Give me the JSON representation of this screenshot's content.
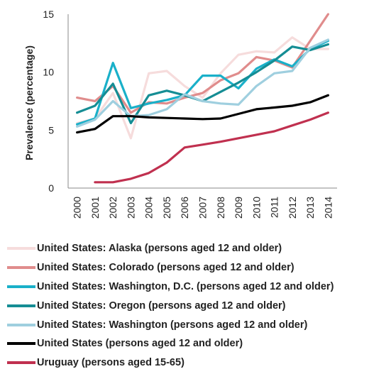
{
  "chart_data": {
    "type": "line",
    "title": "",
    "xlabel": "",
    "ylabel": "Prevalence (percentage)",
    "ylim": [
      0,
      15
    ],
    "yticks": [
      0,
      5,
      10,
      15
    ],
    "x": [
      "2000",
      "2001",
      "2002",
      "2003",
      "2004",
      "2005",
      "2006",
      "2007",
      "2008",
      "2009",
      "2010",
      "2011",
      "2012",
      "2013",
      "2014"
    ],
    "grid": false,
    "legend_position": "bottom",
    "series": [
      {
        "name": "United States: Alaska (persons aged 12 and older)",
        "color": "#f6dcdc",
        "values": [
          5.6,
          6.0,
          8.2,
          4.3,
          9.9,
          10.1,
          8.8,
          7.8,
          9.9,
          11.5,
          11.8,
          11.7,
          13.0,
          12.0,
          12.0
        ]
      },
      {
        "name": "United States: Colorado (persons aged 12 and older)",
        "color": "#e08c8c",
        "values": [
          7.8,
          7.5,
          8.8,
          6.5,
          7.4,
          7.3,
          7.8,
          8.2,
          9.3,
          9.9,
          11.3,
          11.0,
          10.4,
          12.7,
          15.0
        ]
      },
      {
        "name": "United States: Washington, D.C. (persons aged 12 and older)",
        "color": "#1ab0c9",
        "values": [
          5.5,
          6.0,
          10.8,
          6.9,
          7.3,
          7.6,
          8.0,
          9.7,
          9.7,
          8.6,
          10.3,
          11.1,
          10.5,
          12.0,
          12.7
        ]
      },
      {
        "name": "United States: Oregon (persons aged 12 and older)",
        "color": "#158d94",
        "values": [
          6.5,
          7.1,
          9.0,
          5.6,
          8.0,
          8.4,
          8.0,
          7.5,
          8.3,
          9.1,
          10.0,
          11.0,
          12.2,
          11.9,
          12.4
        ]
      },
      {
        "name": "United States: Washington (persons aged 12 and older)",
        "color": "#9fcfdf",
        "values": [
          5.3,
          5.9,
          7.5,
          6.2,
          6.3,
          6.8,
          8.1,
          7.5,
          7.3,
          7.2,
          8.8,
          9.9,
          10.1,
          12.1,
          12.8
        ]
      },
      {
        "name": "United States (persons aged 12 and older)",
        "color": "#000000",
        "values": [
          4.8,
          5.1,
          6.2,
          6.2,
          6.1,
          6.05,
          6.0,
          5.95,
          6.0,
          6.4,
          6.8,
          6.95,
          7.1,
          7.4,
          8.0
        ]
      },
      {
        "name": "Uruguay (persons aged 15-65)",
        "color": "#c0304f",
        "values": [
          null,
          0.5,
          0.5,
          0.8,
          1.3,
          2.2,
          3.5,
          3.75,
          4.0,
          4.3,
          4.6,
          4.9,
          5.4,
          5.9,
          6.5
        ]
      }
    ]
  }
}
